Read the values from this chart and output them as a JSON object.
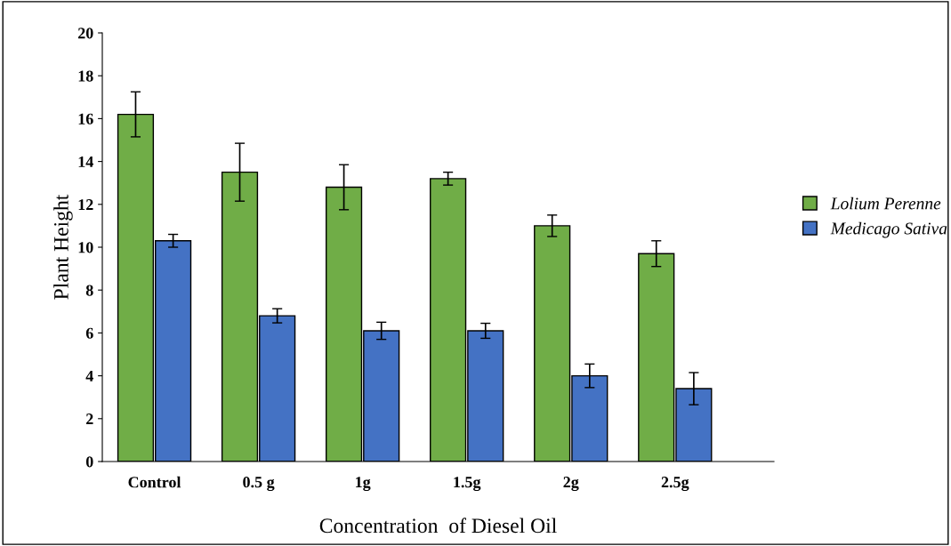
{
  "chart_data": {
    "type": "bar",
    "xlabel": "Concentration  of Diesel Oil",
    "ylabel": "Plant Height",
    "categories": [
      "Control",
      "0.5 g",
      "1g",
      "1.5g",
      "2g",
      "2.5g"
    ],
    "series": [
      {
        "name": "Lolium Perenne",
        "color": "#70ad47",
        "values": [
          16.2,
          13.5,
          12.8,
          13.2,
          11.0,
          9.7
        ],
        "errors": [
          1.05,
          1.35,
          1.05,
          0.3,
          0.5,
          0.6
        ]
      },
      {
        "name": "Medicago Sativa",
        "color": "#4472c4",
        "values": [
          10.3,
          6.8,
          6.1,
          6.1,
          4.0,
          3.4
        ],
        "errors": [
          0.3,
          0.33,
          0.4,
          0.35,
          0.55,
          0.75
        ]
      }
    ],
    "ylim": [
      0,
      20
    ],
    "yticks": [
      0,
      2,
      4,
      6,
      8,
      10,
      12,
      14,
      16,
      18,
      20
    ],
    "grid": false,
    "legend": "right"
  }
}
